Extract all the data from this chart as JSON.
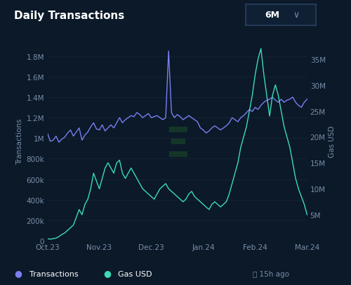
{
  "title": "Daily Transactions",
  "period_label": "6M",
  "background_color": "#0b1929",
  "plot_bg_color": "#0b1929",
  "grid_color": "#162336",
  "transactions_color": "#7b7fef",
  "gas_color": "#3ddbb8",
  "transactions_label": "Transactions",
  "gas_label": "Gas USD",
  "x_tick_labels": [
    "Oct.23",
    "Nov.23",
    "Dec.23",
    "Jan.24",
    "Feb.24",
    "Mar.24"
  ],
  "left_yticks": [
    0,
    200000,
    400000,
    600000,
    800000,
    1000000,
    1200000,
    1400000,
    1600000,
    1800000
  ],
  "left_ytick_labels": [
    "0",
    "200k",
    "400k",
    "600k",
    "800k",
    "1M",
    "1.2M",
    "1.4M",
    "1.6M",
    "1.8M"
  ],
  "right_yticks": [
    5000000,
    10000000,
    15000000,
    20000000,
    25000000,
    30000000,
    35000000
  ],
  "right_ytick_labels": [
    "5M",
    "10M",
    "15M",
    "20M",
    "25M",
    "30M",
    "35M"
  ],
  "left_ylim": [
    0,
    1950000
  ],
  "right_ylim": [
    0,
    38500000
  ],
  "footer_text": "15h ago",
  "transactions_data": [
    1050000,
    970000,
    980000,
    1020000,
    960000,
    990000,
    1010000,
    1050000,
    1080000,
    1020000,
    1060000,
    1100000,
    980000,
    1030000,
    1060000,
    1110000,
    1150000,
    1090000,
    1080000,
    1130000,
    1070000,
    1100000,
    1130000,
    1100000,
    1150000,
    1200000,
    1150000,
    1180000,
    1200000,
    1220000,
    1210000,
    1250000,
    1230000,
    1200000,
    1220000,
    1240000,
    1200000,
    1210000,
    1220000,
    1200000,
    1180000,
    1200000,
    1850000,
    1250000,
    1200000,
    1230000,
    1210000,
    1180000,
    1200000,
    1220000,
    1200000,
    1180000,
    1160000,
    1100000,
    1080000,
    1050000,
    1070000,
    1100000,
    1120000,
    1100000,
    1080000,
    1100000,
    1120000,
    1150000,
    1200000,
    1180000,
    1160000,
    1200000,
    1220000,
    1250000,
    1280000,
    1260000,
    1300000,
    1280000,
    1320000,
    1350000,
    1370000,
    1380000,
    1400000,
    1370000,
    1350000,
    1380000,
    1350000,
    1370000,
    1380000,
    1400000,
    1350000,
    1320000,
    1300000,
    1350000,
    1380000
  ],
  "gas_data_m": [
    0.4,
    0.3,
    0.4,
    0.5,
    0.8,
    1.2,
    1.5,
    2.0,
    2.5,
    3.0,
    4.5,
    6.0,
    5.0,
    7.0,
    8.0,
    10.0,
    13.0,
    11.5,
    10.0,
    12.0,
    14.0,
    15.0,
    14.0,
    13.0,
    15.0,
    15.5,
    13.0,
    12.0,
    13.0,
    14.0,
    13.0,
    12.0,
    11.0,
    10.0,
    9.5,
    9.0,
    8.5,
    8.0,
    9.0,
    10.0,
    10.5,
    11.0,
    10.0,
    9.5,
    9.0,
    8.5,
    8.0,
    7.5,
    8.0,
    9.0,
    9.5,
    8.5,
    8.0,
    7.5,
    7.0,
    6.5,
    6.0,
    7.0,
    7.5,
    7.0,
    6.5,
    7.0,
    7.5,
    9.0,
    11.0,
    13.0,
    15.0,
    18.0,
    20.0,
    22.0,
    25.0,
    28.0,
    32.0,
    35.0,
    37.0,
    32.0,
    28.0,
    24.0,
    28.0,
    30.0,
    28.0,
    25.0,
    22.0,
    20.0,
    18.0,
    15.0,
    12.0,
    10.0,
    8.5,
    7.0,
    5.0
  ]
}
